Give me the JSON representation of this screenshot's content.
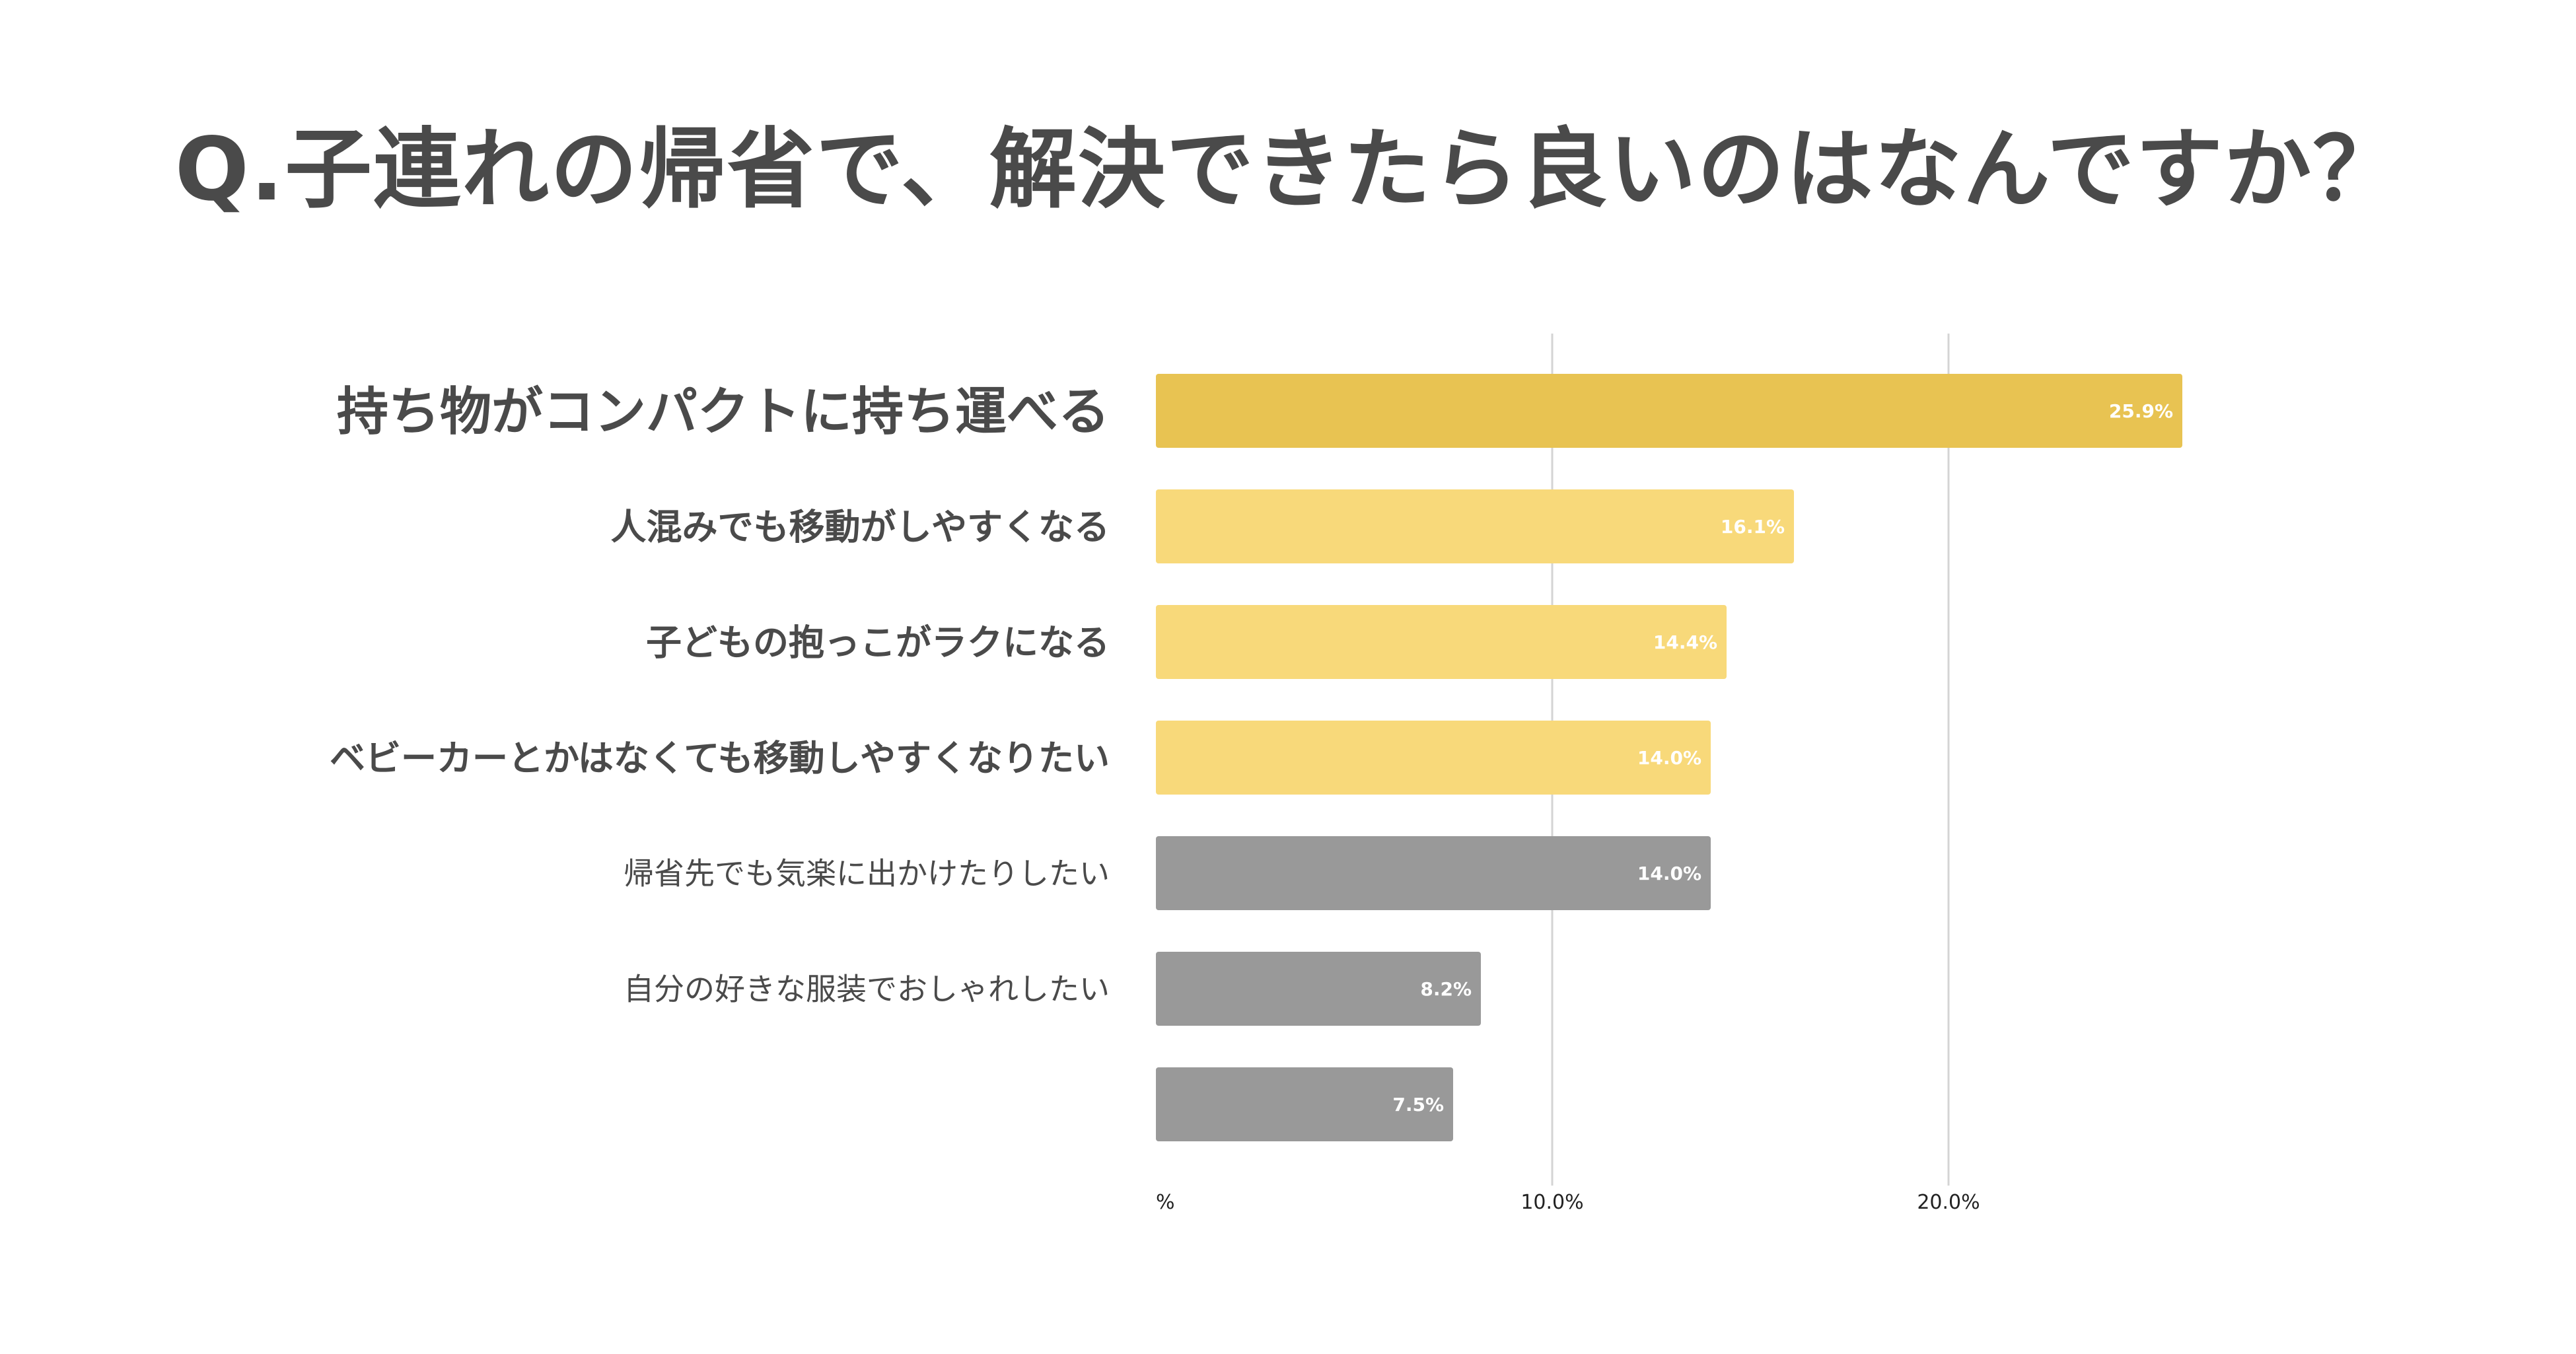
{
  "title": "Q.子連れの帰省で、解決できたら良いのはなんですか？",
  "colors": {
    "top": "#e8c352",
    "highlight": "#f8d97a",
    "other": "#999999",
    "grid": "#d4d4d4"
  },
  "chart_data": {
    "type": "bar",
    "orientation": "horizontal",
    "title": "Q.子連れの帰省で、解決できたら良いのはなんですか？",
    "categories": [
      "持ち物がコンパクトに持ち運べる",
      "人混みでも移動がしやすくなる",
      "子どもの抱っこがラクになる",
      "ベビーカーとかはなくても移動しやすくなりたい",
      "帰省先でも気楽に出かけたりしたい",
      "自分の好きな服装でおしゃれしたい",
      ""
    ],
    "values": [
      25.9,
      16.1,
      14.4,
      14.0,
      14.0,
      8.2,
      7.5
    ],
    "value_labels": [
      "25.9%",
      "16.1%",
      "14.4%",
      "14.0%",
      "14.0%",
      "8.2%",
      "7.5%"
    ],
    "bar_style": [
      "top",
      "highlight",
      "highlight",
      "highlight",
      "other",
      "other",
      "other"
    ],
    "label_emphasis": [
      "large",
      "medium",
      "medium",
      "medium",
      "normal",
      "normal",
      "normal"
    ],
    "x_ticks": [
      {
        "value": 0,
        "label": "%"
      },
      {
        "value": 10,
        "label": "10.0%"
      },
      {
        "value": 20,
        "label": "20.0%"
      }
    ],
    "xlim": [
      0,
      29
    ],
    "grid": true,
    "legend": "none"
  }
}
